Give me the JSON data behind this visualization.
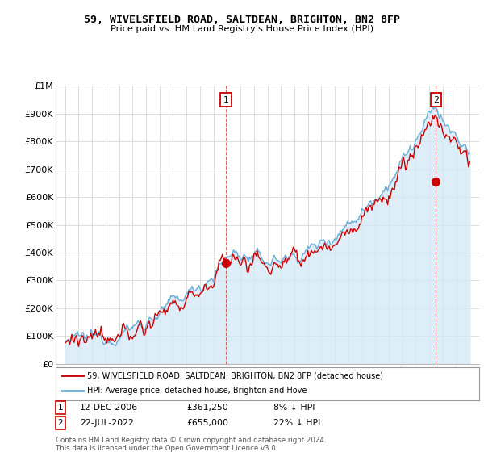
{
  "title": "59, WIVELSFIELD ROAD, SALTDEAN, BRIGHTON, BN2 8FP",
  "subtitle": "Price paid vs. HM Land Registry's House Price Index (HPI)",
  "ylim": [
    0,
    1000000
  ],
  "yticks": [
    0,
    100000,
    200000,
    300000,
    400000,
    500000,
    600000,
    700000,
    800000,
    900000,
    1000000
  ],
  "hpi_color": "#6aaed6",
  "hpi_fill_color": "#d6eaf8",
  "price_color": "#cc0000",
  "marker1_price": 361250,
  "marker1_label": "12-DEC-2006",
  "marker1_amount": "£361,250",
  "marker1_pct": "8% ↓ HPI",
  "marker2_price": 655000,
  "marker2_label": "22-JUL-2022",
  "marker2_amount": "£655,000",
  "marker2_pct": "22% ↓ HPI",
  "legend_label1": "59, WIVELSFIELD ROAD, SALTDEAN, BRIGHTON, BN2 8FP (detached house)",
  "legend_label2": "HPI: Average price, detached house, Brighton and Hove",
  "footnote": "Contains HM Land Registry data © Crown copyright and database right 2024.\nThis data is licensed under the Open Government Licence v3.0.",
  "bg_color": "#ffffff",
  "grid_color": "#d0d0d0"
}
